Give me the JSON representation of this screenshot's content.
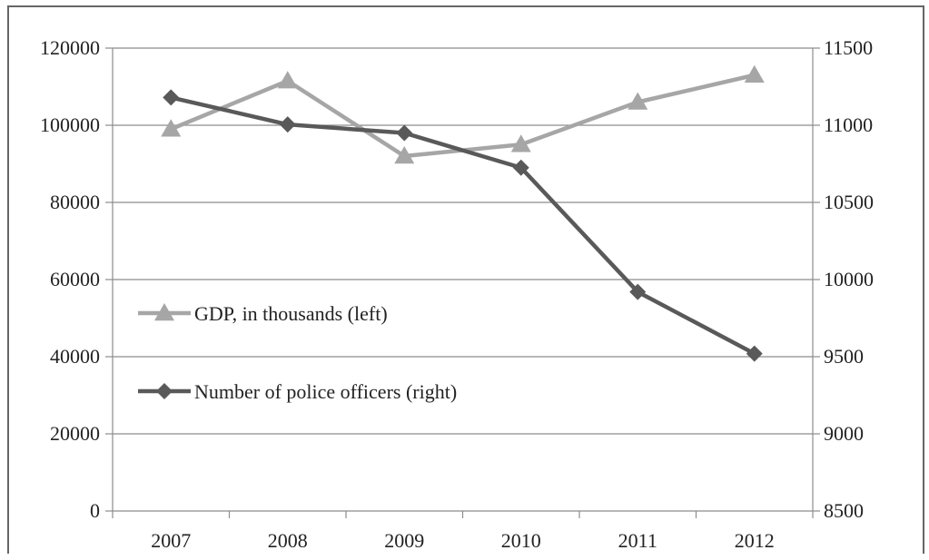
{
  "chart_data": {
    "type": "line",
    "categories": [
      "2007",
      "2008",
      "2009",
      "2010",
      "2011",
      "2012"
    ],
    "series": [
      {
        "name": "GDP, in thousands (left)",
        "axis": "left",
        "marker": "triangle",
        "color": "#a6a6a6",
        "values": [
          99000,
          111500,
          92000,
          95000,
          106000,
          113000
        ]
      },
      {
        "name": "Number of police officers (right)",
        "axis": "right",
        "marker": "diamond",
        "color": "#595959",
        "values": [
          11180,
          11005,
          10950,
          10725,
          9920,
          9520
        ]
      }
    ],
    "y_left": {
      "min": 0,
      "max": 120000,
      "ticks": [
        "0",
        "20000",
        "40000",
        "60000",
        "80000",
        "100000",
        "120000"
      ]
    },
    "y_right": {
      "min": 8500,
      "max": 11500,
      "ticks": [
        "8500",
        "9000",
        "9500",
        "10000",
        "10500",
        "11000",
        "11500"
      ]
    },
    "grid": true,
    "legend": "inside-left"
  }
}
